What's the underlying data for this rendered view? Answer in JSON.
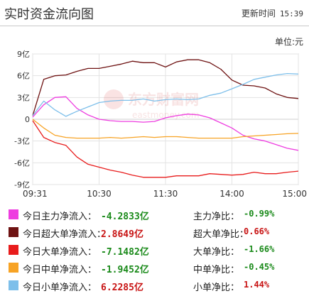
{
  "header": {
    "title": "实时资金流向图",
    "update_label": "更新时间",
    "update_time": "15:39"
  },
  "unit_label": "单位:元",
  "watermark": {
    "cn": "东方财富网",
    "en": "eastmoney.com"
  },
  "chart_data": {
    "type": "line",
    "title": "实时资金流向图",
    "ylabel": "",
    "xlabel": "",
    "yunit": "亿",
    "ylim": [
      -9,
      9
    ],
    "yticks": [
      "9亿",
      "6亿",
      "3亿",
      "0",
      "-3亿",
      "-6亿",
      "-9亿"
    ],
    "xticks": [
      "09:31",
      "10:30",
      "11:30",
      "14:00",
      "15:00"
    ],
    "x": [
      "09:31",
      "09:40",
      "09:50",
      "10:00",
      "10:10",
      "10:20",
      "10:30",
      "10:40",
      "10:50",
      "11:00",
      "11:10",
      "11:20",
      "11:30",
      "13:10",
      "13:20",
      "13:30",
      "13:40",
      "13:50",
      "14:00",
      "14:10",
      "14:20",
      "14:30",
      "14:40",
      "14:50",
      "15:00"
    ],
    "grid": true,
    "series": [
      {
        "name": "今日主力净流入",
        "color": "#ee3de0",
        "values": [
          0.3,
          2.0,
          3.0,
          3.1,
          1.5,
          0.6,
          0.0,
          -0.2,
          -0.3,
          -0.3,
          -0.4,
          -0.3,
          0.2,
          0.5,
          0.7,
          0.6,
          0.2,
          -0.5,
          -1.2,
          -2.2,
          -2.7,
          -3.0,
          -3.5,
          -4.0,
          -4.28
        ]
      },
      {
        "name": "今日超大单净流入",
        "color": "#6e1212",
        "values": [
          0.5,
          5.5,
          6.0,
          6.1,
          6.6,
          7.0,
          7.0,
          7.3,
          7.6,
          8.0,
          7.8,
          7.8,
          7.2,
          7.9,
          8.2,
          8.2,
          7.8,
          6.9,
          5.4,
          4.7,
          4.6,
          4.3,
          3.5,
          3.0,
          2.86
        ]
      },
      {
        "name": "今日大单净流入",
        "color": "#e81c1c",
        "values": [
          -0.2,
          -2.5,
          -3.2,
          -3.6,
          -5.2,
          -6.2,
          -6.6,
          -7.0,
          -7.3,
          -7.7,
          -8.0,
          -8.0,
          -8.0,
          -7.8,
          -7.8,
          -7.8,
          -7.5,
          -7.6,
          -7.7,
          -7.6,
          -7.3,
          -7.5,
          -7.5,
          -7.3,
          -7.15
        ]
      },
      {
        "name": "今日中单净流入",
        "color": "#f7a325",
        "values": [
          0.0,
          -1.2,
          -2.2,
          -2.5,
          -2.6,
          -2.6,
          -2.6,
          -2.5,
          -2.6,
          -2.5,
          -2.4,
          -2.5,
          -2.4,
          -2.4,
          -2.5,
          -2.6,
          -2.6,
          -2.6,
          -2.6,
          -2.4,
          -2.3,
          -2.2,
          -2.1,
          -2.0,
          -1.95
        ]
      },
      {
        "name": "今日小单净流入",
        "color": "#7dbfea",
        "values": [
          0.5,
          2.5,
          1.3,
          0.4,
          1.1,
          1.7,
          2.3,
          2.5,
          2.6,
          2.6,
          2.8,
          2.5,
          2.7,
          2.8,
          2.7,
          2.8,
          3.3,
          3.6,
          4.2,
          4.8,
          5.5,
          5.8,
          6.1,
          6.3,
          6.23
        ]
      }
    ]
  },
  "legend": [
    {
      "label": "今日主力净流入：",
      "value": "-4.2833亿",
      "ratio_label": "主力净比：",
      "ratio": "-0.99%",
      "color": "#ee3de0",
      "sign": "neg"
    },
    {
      "label": "今日超大单净流入：",
      "value": "2.8649亿",
      "ratio_label": "超大单净比：",
      "ratio": "0.66%",
      "color": "#6e1212",
      "sign": "pos"
    },
    {
      "label": "今日大单净流入：",
      "value": "-7.1482亿",
      "ratio_label": "大单净比：",
      "ratio": "-1.66%",
      "color": "#e81c1c",
      "sign": "neg"
    },
    {
      "label": "今日中单净流入：",
      "value": "-1.9452亿",
      "ratio_label": "中单净比：",
      "ratio": "-0.45%",
      "color": "#f7a325",
      "sign": "neg"
    },
    {
      "label": "今日小单净流入：",
      "value": "6.2285亿",
      "ratio_label": "小单净比：",
      "ratio": "1.44%",
      "color": "#7dbfea",
      "sign": "pos"
    }
  ]
}
